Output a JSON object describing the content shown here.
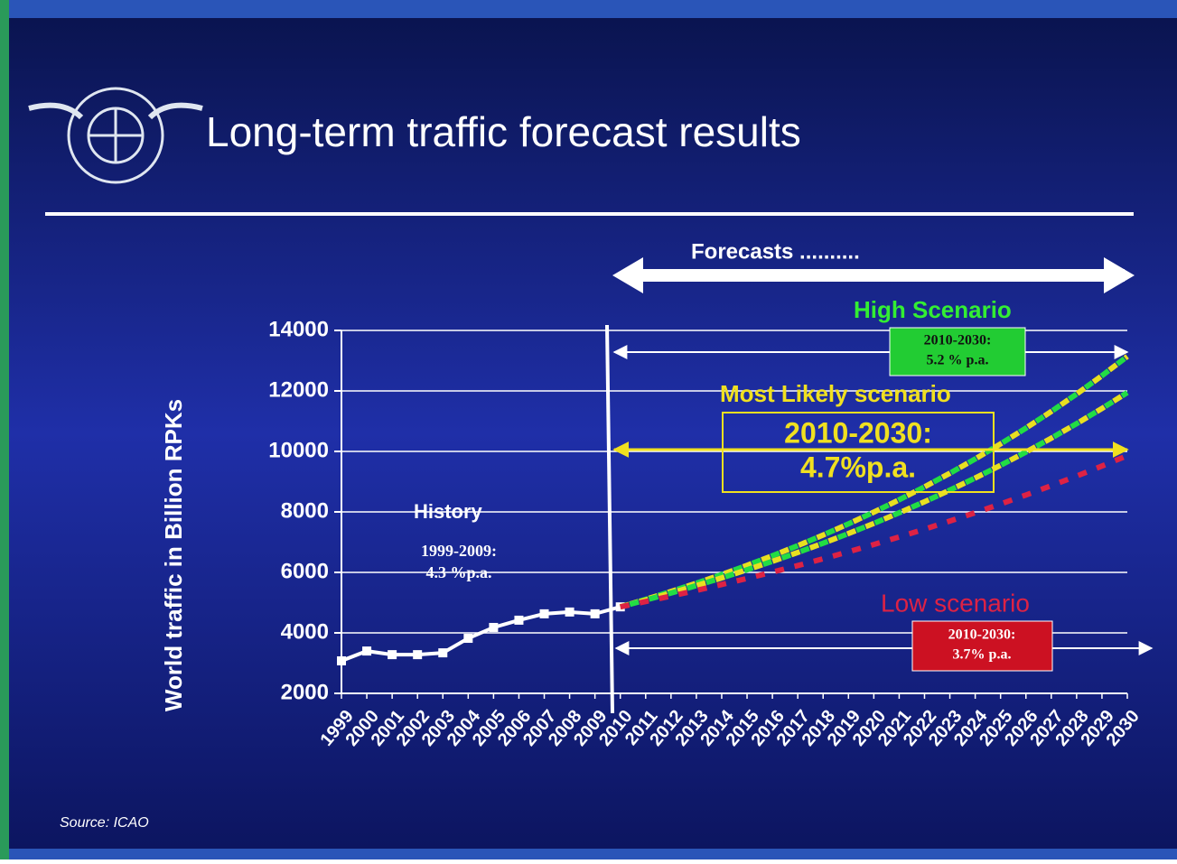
{
  "chart_data": {
    "type": "line",
    "title": "Long-term traffic forecast results",
    "y_label": "World traffic in Billion RPKs",
    "source": "Source: ICAO",
    "categories": [
      "1999",
      "2000",
      "2001",
      "2002",
      "2003",
      "2004",
      "2005",
      "2006",
      "2007",
      "2008",
      "2009",
      "2010",
      "2011",
      "2012",
      "2013",
      "2014",
      "2015",
      "2016",
      "2017",
      "2018",
      "2019",
      "2020",
      "2021",
      "2022",
      "2023",
      "2024",
      "2025",
      "2026",
      "2027",
      "2028",
      "2029",
      "2030"
    ],
    "ylim": [
      2000,
      14000
    ],
    "yticks": [
      2000,
      4000,
      6000,
      8000,
      10000,
      12000,
      14000
    ],
    "grid": true,
    "series": [
      {
        "name": "History",
        "color": "#ffffff",
        "style": "solid",
        "values": [
          3075,
          3400,
          3280,
          3280,
          3340,
          3820,
          4180,
          4420,
          4630,
          4690,
          4630,
          4860,
          null,
          null,
          null,
          null,
          null,
          null,
          null,
          null,
          null,
          null,
          null,
          null,
          null,
          null,
          null,
          null,
          null,
          null,
          null,
          null
        ]
      },
      {
        "name": "High Scenario",
        "color": "#22dd44",
        "dash_color": "#e8e020",
        "style": "dotted",
        "values": [
          null,
          null,
          null,
          null,
          null,
          null,
          null,
          null,
          null,
          null,
          null,
          4860,
          5108,
          5368,
          5642,
          5930,
          6232,
          6550,
          6884,
          7235,
          7604,
          7992,
          8400,
          8828,
          9278,
          9751,
          10249,
          10771,
          11320,
          11897,
          12504,
          13141
        ]
      },
      {
        "name": "Most Likely scenario",
        "color": "#e8e020",
        "dash_color": "#22dd44",
        "style": "dotted",
        "values": [
          null,
          null,
          null,
          null,
          null,
          null,
          null,
          null,
          null,
          null,
          null,
          4860,
          5084,
          5317,
          5562,
          5818,
          6085,
          6365,
          6658,
          6964,
          7284,
          7619,
          7970,
          8336,
          8720,
          9121,
          9540,
          9979,
          10438,
          10918,
          11420,
          11946
        ]
      },
      {
        "name": "Low scenario",
        "color": "#dd2244",
        "style": "dotted",
        "values": [
          null,
          null,
          null,
          null,
          null,
          null,
          null,
          null,
          null,
          null,
          null,
          4860,
          5035,
          5216,
          5404,
          5599,
          5800,
          6009,
          6225,
          6449,
          6681,
          6922,
          7171,
          7429,
          7697,
          7974,
          8261,
          8558,
          8866,
          9185,
          9516,
          9859
        ]
      }
    ],
    "annotations": {
      "forecasts": "Forecasts ..........",
      "history_period": "1999-2009:",
      "history_rate": "4.3 %p.a.",
      "high_period": "2010-2030:",
      "high_rate": "5.2 % p.a.",
      "likely_period": "2010-2030:",
      "likely_rate": "4.7%p.a.",
      "low_period": "2010-2030:",
      "low_rate": "3.7% p.a."
    }
  }
}
